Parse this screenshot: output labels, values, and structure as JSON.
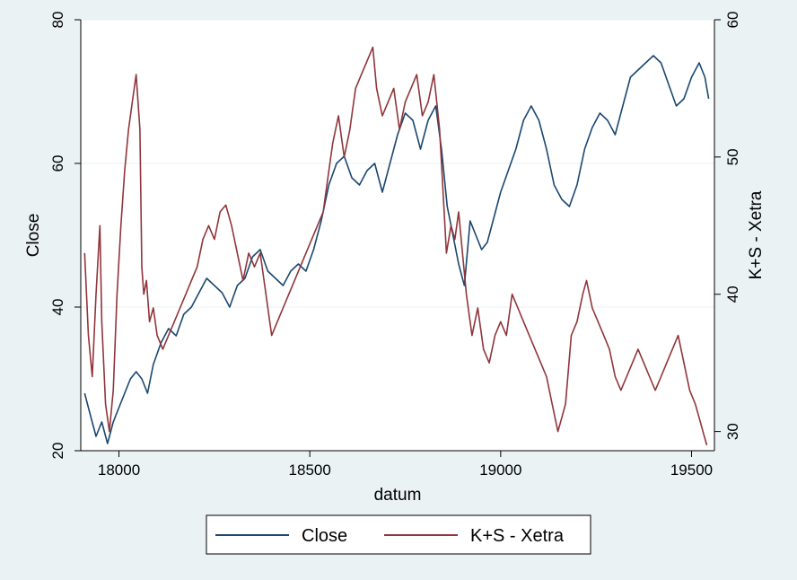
{
  "chart_data": {
    "type": "line",
    "xlabel": "datum",
    "ylabel": "Close",
    "y2label": "K+S - Xetra",
    "xlim": [
      17900,
      19560
    ],
    "ylim": [
      20,
      80
    ],
    "y2lim": [
      28.6,
      60
    ],
    "x_ticks": [
      18000,
      18500,
      19000,
      19500
    ],
    "x_tick_labels": [
      "18000",
      "18500",
      "19000",
      "19500"
    ],
    "y_ticks": [
      20,
      40,
      60,
      80
    ],
    "y_tick_labels": [
      "20",
      "40",
      "60",
      "80"
    ],
    "y2_ticks": [
      30,
      40,
      50,
      60
    ],
    "y2_tick_labels": [
      "30",
      "40",
      "50",
      "60"
    ],
    "grid": true,
    "legend_position": "bottom",
    "series": [
      {
        "name": "Close",
        "axis": "left",
        "color": "#1a476f",
        "x": [
          17910,
          17925,
          17940,
          17955,
          17970,
          17985,
          18000,
          18015,
          18030,
          18045,
          18060,
          18075,
          18090,
          18110,
          18130,
          18150,
          18170,
          18190,
          18210,
          18230,
          18250,
          18270,
          18290,
          18310,
          18330,
          18350,
          18370,
          18390,
          18410,
          18430,
          18450,
          18470,
          18490,
          18510,
          18530,
          18550,
          18570,
          18590,
          18610,
          18630,
          18650,
          18670,
          18690,
          18710,
          18730,
          18750,
          18770,
          18790,
          18810,
          18830,
          18845,
          18860,
          18875,
          18890,
          18905,
          18920,
          18935,
          18950,
          18965,
          18980,
          19000,
          19020,
          19040,
          19060,
          19080,
          19100,
          19120,
          19140,
          19160,
          19180,
          19200,
          19220,
          19240,
          19260,
          19280,
          19300,
          19320,
          19340,
          19360,
          19380,
          19400,
          19420,
          19440,
          19460,
          19480,
          19500,
          19520,
          19535,
          19545
        ],
        "values": [
          28,
          25,
          22,
          24,
          21,
          24,
          26,
          28,
          30,
          31,
          30,
          28,
          32,
          35,
          37,
          36,
          39,
          40,
          42,
          44,
          43,
          42,
          40,
          43,
          44,
          47,
          48,
          45,
          44,
          43,
          45,
          46,
          45,
          48,
          52,
          57,
          60,
          61,
          58,
          57,
          59,
          60,
          56,
          60,
          64,
          67,
          66,
          62,
          66,
          68,
          62,
          54,
          50,
          46,
          43,
          52,
          50,
          48,
          49,
          52,
          56,
          59,
          62,
          66,
          68,
          66,
          62,
          57,
          55,
          54,
          57,
          62,
          65,
          67,
          66,
          64,
          68,
          72,
          73,
          74,
          75,
          74,
          71,
          68,
          69,
          72,
          74,
          72,
          69
        ],
        "label": "Close"
      },
      {
        "name": "K+S - Xetra",
        "axis": "right",
        "color": "#90353b",
        "x": [
          17910,
          17920,
          17930,
          17940,
          17950,
          17955,
          17965,
          17975,
          17985,
          17995,
          18005,
          18015,
          18025,
          18035,
          18045,
          18055,
          18060,
          18065,
          18072,
          18080,
          18090,
          18100,
          18115,
          18130,
          18145,
          18160,
          18175,
          18190,
          18205,
          18220,
          18235,
          18250,
          18265,
          18280,
          18295,
          18310,
          18325,
          18340,
          18355,
          18370,
          18385,
          18400,
          18415,
          18430,
          18445,
          18460,
          18475,
          18490,
          18505,
          18520,
          18535,
          18550,
          18560,
          18575,
          18590,
          18605,
          18620,
          18635,
          18650,
          18665,
          18675,
          18690,
          18705,
          18720,
          18735,
          18750,
          18765,
          18780,
          18795,
          18810,
          18825,
          18840,
          18848,
          18858,
          18870,
          18880,
          18890,
          18900,
          18910,
          18925,
          18940,
          18955,
          18970,
          18985,
          19000,
          19015,
          19030,
          19045,
          19060,
          19075,
          19090,
          19105,
          19120,
          19135,
          19150,
          19160,
          19170,
          19185,
          19200,
          19215,
          19225,
          19240,
          19255,
          19270,
          19285,
          19300,
          19315,
          19330,
          19345,
          19360,
          19375,
          19390,
          19405,
          19420,
          19435,
          19450,
          19465,
          19480,
          19495,
          19510,
          19520,
          19530,
          19540
        ],
        "values": [
          43,
          37,
          34,
          40,
          45,
          38,
          32,
          30,
          33,
          40,
          45,
          49,
          52,
          54,
          56,
          52,
          42,
          40,
          41,
          38,
          39,
          37,
          36,
          37,
          38,
          39,
          40,
          41,
          42,
          44,
          45,
          44,
          46,
          46.5,
          45,
          43,
          41,
          43,
          42,
          43,
          40,
          37,
          38,
          39,
          40,
          41,
          42,
          43,
          44,
          45,
          46,
          49,
          51,
          53,
          50,
          52,
          55,
          56,
          57,
          58,
          55,
          53,
          54,
          55,
          52,
          54,
          55,
          56,
          53,
          54,
          56,
          52,
          48,
          43,
          45,
          44,
          46,
          43,
          40,
          37,
          39,
          36,
          35,
          37,
          38,
          37,
          40,
          39,
          38,
          37,
          36,
          35,
          34,
          32,
          30,
          31,
          32,
          37,
          38,
          40,
          41,
          39,
          38,
          37,
          36,
          34,
          33,
          34,
          35,
          36,
          35,
          34,
          33,
          34,
          35,
          36,
          37,
          35,
          33,
          32,
          31,
          30,
          29
        ]
      }
    ]
  }
}
